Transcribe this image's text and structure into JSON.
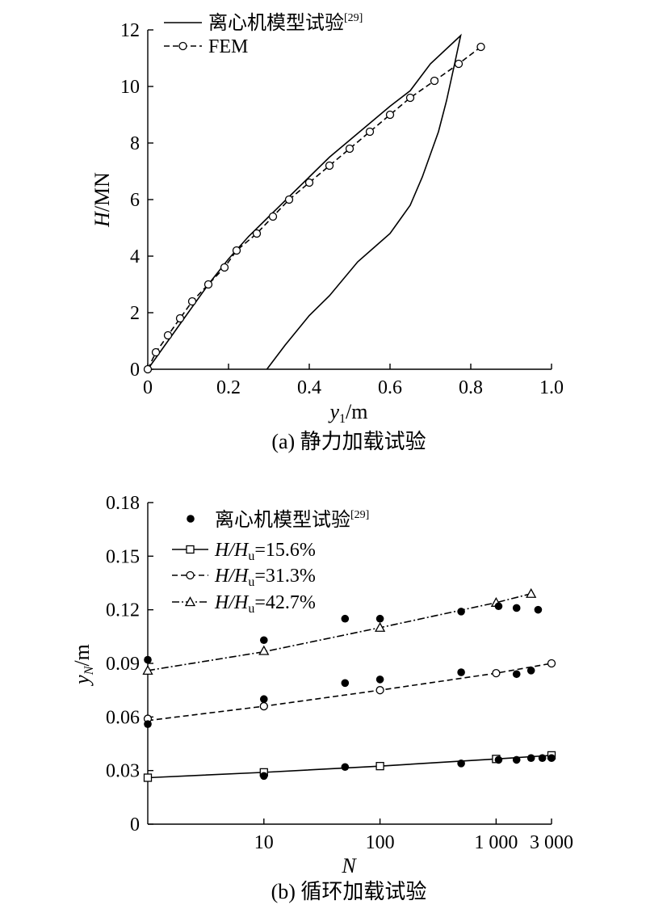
{
  "chart_data": [
    {
      "type": "line",
      "caption": "(a) 静力加载试验",
      "xlabel_var": "y",
      "xlabel_sub": "1",
      "xlabel_unit": "/m",
      "ylabel_var": "H",
      "ylabel_unit": "/MN",
      "xlim": [
        0,
        1.0
      ],
      "ylim": [
        0,
        12
      ],
      "xticks": [
        0,
        0.2,
        0.4,
        0.6,
        0.8,
        1.0
      ],
      "xtick_labels": [
        "0",
        "0.2",
        "0.4",
        "0.6",
        "0.8",
        "1.0"
      ],
      "yticks": [
        0,
        2,
        4,
        6,
        8,
        10,
        12
      ],
      "ytick_labels": [
        "0",
        "2",
        "4",
        "6",
        "8",
        "10",
        "12"
      ],
      "grid": false,
      "legend_position": "top-left",
      "series": [
        {
          "name": "离心机模型试验",
          "ref": "[29]",
          "style": "solid",
          "marker": "none",
          "points": [
            [
              0,
              0
            ],
            [
              0.05,
              1.0
            ],
            [
              0.1,
              2.0
            ],
            [
              0.15,
              3.0
            ],
            [
              0.2,
              3.9
            ],
            [
              0.25,
              4.7
            ],
            [
              0.3,
              5.4
            ],
            [
              0.35,
              6.1
            ],
            [
              0.4,
              6.8
            ],
            [
              0.45,
              7.5
            ],
            [
              0.5,
              8.1
            ],
            [
              0.55,
              8.7
            ],
            [
              0.6,
              9.3
            ],
            [
              0.65,
              9.85
            ],
            [
              0.7,
              10.8
            ],
            [
              0.775,
              11.8
            ],
            [
              0.76,
              10.8
            ],
            [
              0.74,
              9.5
            ],
            [
              0.72,
              8.4
            ],
            [
              0.7,
              7.6
            ],
            [
              0.68,
              6.8
            ],
            [
              0.65,
              5.8
            ],
            [
              0.62,
              5.2
            ],
            [
              0.6,
              4.8
            ],
            [
              0.56,
              4.3
            ],
            [
              0.52,
              3.8
            ],
            [
              0.45,
              2.6
            ],
            [
              0.4,
              1.9
            ],
            [
              0.34,
              0.85
            ],
            [
              0.295,
              0
            ]
          ]
        },
        {
          "name": "FEM",
          "style": "dashed",
          "marker": "circle",
          "points": [
            [
              0,
              0
            ],
            [
              0.02,
              0.6
            ],
            [
              0.05,
              1.2
            ],
            [
              0.08,
              1.8
            ],
            [
              0.11,
              2.4
            ],
            [
              0.15,
              3.0
            ],
            [
              0.19,
              3.6
            ],
            [
              0.22,
              4.2
            ],
            [
              0.27,
              4.8
            ],
            [
              0.31,
              5.4
            ],
            [
              0.35,
              6.0
            ],
            [
              0.4,
              6.6
            ],
            [
              0.45,
              7.2
            ],
            [
              0.5,
              7.8
            ],
            [
              0.55,
              8.4
            ],
            [
              0.6,
              9.0
            ],
            [
              0.65,
              9.6
            ],
            [
              0.71,
              10.2
            ],
            [
              0.77,
              10.8
            ],
            [
              0.825,
              11.4
            ]
          ]
        }
      ]
    },
    {
      "type": "scatter",
      "caption": "(b) 循环加载试验",
      "xlabel": "N",
      "ylabel_var": "y",
      "ylabel_sub": "N",
      "ylabel_unit": "/m",
      "xscale": "log",
      "xlim": [
        1,
        3000
      ],
      "ylim": [
        0,
        0.18
      ],
      "xticks": [
        10,
        100,
        1000,
        3000
      ],
      "xtick_labels": [
        "10",
        "100",
        "1 000",
        "3 000"
      ],
      "yticks": [
        0,
        0.03,
        0.06,
        0.09,
        0.12,
        0.15,
        0.18
      ],
      "ytick_labels": [
        "0",
        "0.03",
        "0.06",
        "0.09",
        "0.12",
        "0.15",
        "0.18"
      ],
      "grid": false,
      "legend_position": "top-left",
      "test_series": {
        "name": "离心机模型试验",
        "ref": "[29]",
        "marker": "filled-circle",
        "points": [
          [
            1,
            0.092
          ],
          [
            1,
            0.056
          ],
          [
            10,
            0.103
          ],
          [
            10,
            0.07
          ],
          [
            10,
            0.027
          ],
          [
            50,
            0.115
          ],
          [
            50,
            0.079
          ],
          [
            50,
            0.032
          ],
          [
            100,
            0.115
          ],
          [
            100,
            0.081
          ],
          [
            500,
            0.119
          ],
          [
            500,
            0.085
          ],
          [
            500,
            0.034
          ],
          [
            1050,
            0.122
          ],
          [
            1050,
            0.036
          ],
          [
            1500,
            0.121
          ],
          [
            1500,
            0.084
          ],
          [
            1500,
            0.036
          ],
          [
            2000,
            0.086
          ],
          [
            2000,
            0.037
          ],
          [
            2300,
            0.12
          ],
          [
            2500,
            0.037
          ],
          [
            3000,
            0.037
          ]
        ]
      },
      "series": [
        {
          "name_var": "H/H",
          "name_sub": "u",
          "name_value": "=15.6%",
          "style": "solid",
          "marker": "square",
          "line": [
            [
              1,
              0.026
            ],
            [
              10,
              0.029
            ],
            [
              100,
              0.0325
            ],
            [
              1000,
              0.0365
            ],
            [
              3000,
              0.0385
            ]
          ],
          "markers": [
            [
              1,
              0.026
            ],
            [
              10,
              0.029
            ],
            [
              100,
              0.0325
            ],
            [
              1000,
              0.0365
            ],
            [
              3000,
              0.0385
            ]
          ]
        },
        {
          "name_var": "H/H",
          "name_sub": "u",
          "name_value": "=31.3%",
          "style": "dashed",
          "marker": "circle",
          "line": [
            [
              1,
              0.058
            ],
            [
              10,
              0.066
            ],
            [
              100,
              0.075
            ],
            [
              1000,
              0.0845
            ],
            [
              3000,
              0.09
            ]
          ],
          "markers": [
            [
              1,
              0.059
            ],
            [
              10,
              0.066
            ],
            [
              100,
              0.075
            ],
            [
              1000,
              0.0845
            ],
            [
              3000,
              0.09
            ]
          ]
        },
        {
          "name_var": "H/H",
          "name_sub": "u",
          "name_value": "=42.7%",
          "style": "dash-dot",
          "marker": "triangle",
          "line": [
            [
              1,
              0.086
            ],
            [
              10,
              0.0965
            ],
            [
              100,
              0.11
            ],
            [
              1000,
              0.124
            ],
            [
              2000,
              0.129
            ]
          ],
          "markers": [
            [
              1,
              0.086
            ],
            [
              10,
              0.097
            ],
            [
              100,
              0.11
            ],
            [
              1000,
              0.124
            ],
            [
              2000,
              0.129
            ]
          ]
        }
      ]
    }
  ]
}
